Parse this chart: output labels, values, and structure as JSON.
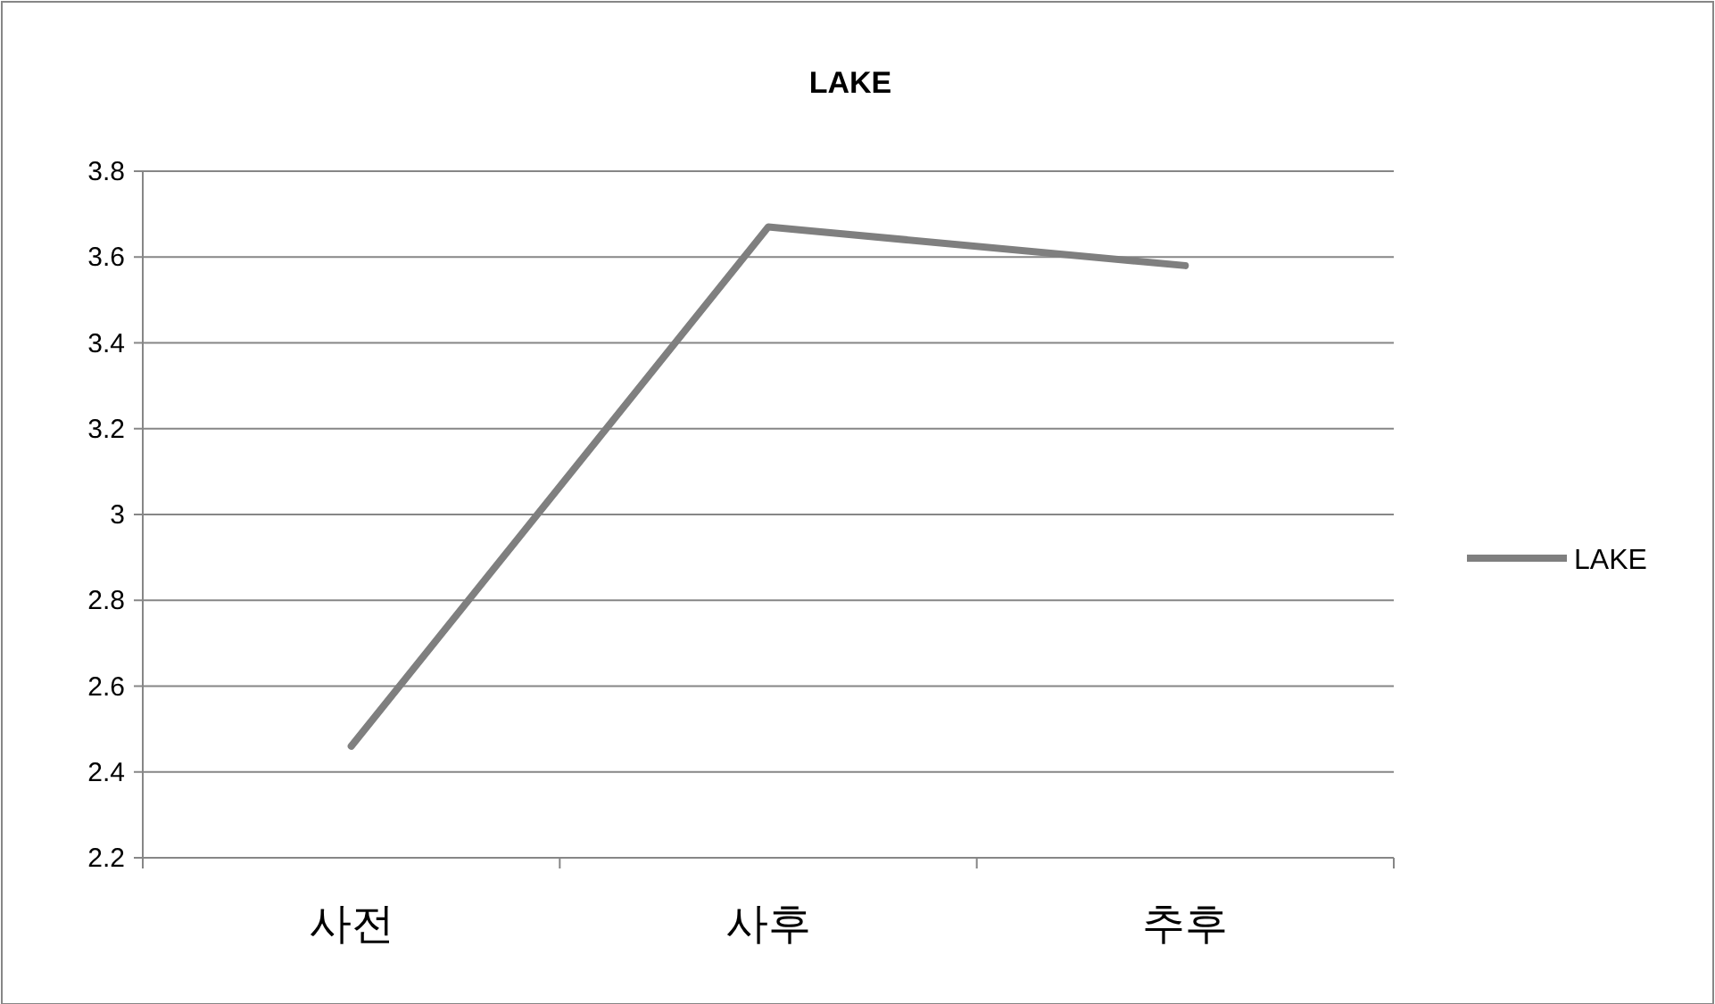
{
  "chart_data": {
    "type": "line",
    "title": "LAKE",
    "categories": [
      "사전",
      "사후",
      "추후"
    ],
    "series": [
      {
        "name": "LAKE",
        "color": "#7f7f7f",
        "values": [
          2.46,
          3.67,
          3.58
        ]
      }
    ],
    "ylim": [
      2.2,
      3.8
    ],
    "yticks": [
      2.2,
      2.4,
      2.6,
      2.8,
      3,
      3.2,
      3.4,
      3.6,
      3.8
    ],
    "grid": "y",
    "legend": "right",
    "marker": "none",
    "line_style": "solid"
  }
}
